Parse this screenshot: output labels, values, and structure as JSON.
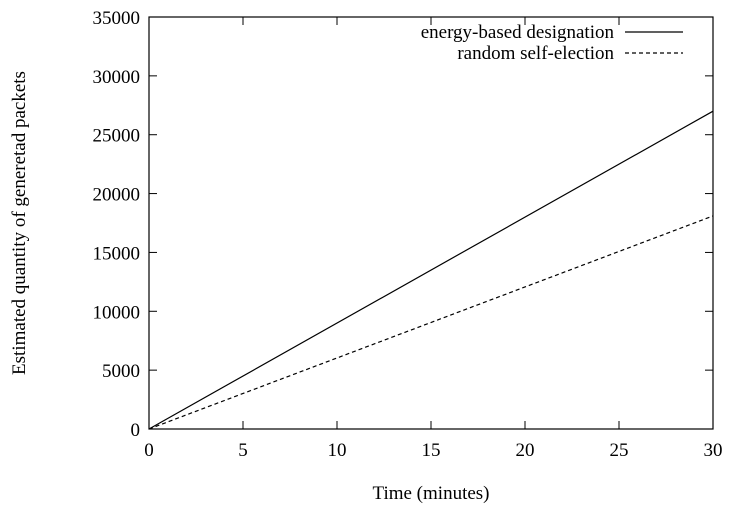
{
  "chart_data": {
    "type": "line",
    "title": "",
    "xlabel": "Time (minutes)",
    "ylabel": "Estimated quantity of generetad packets",
    "xlim": [
      0,
      30
    ],
    "ylim": [
      0,
      35000
    ],
    "x_ticks": [
      0,
      5,
      10,
      15,
      20,
      25,
      30
    ],
    "y_ticks": [
      0,
      5000,
      10000,
      15000,
      20000,
      25000,
      30000,
      35000
    ],
    "grid": false,
    "legend_position": "top-right",
    "series": [
      {
        "name": "energy-based designation",
        "style": "solid",
        "color": "#000000",
        "x": [
          0,
          30
        ],
        "y": [
          0,
          27000
        ]
      },
      {
        "name": "random self-election",
        "style": "dashed",
        "color": "#000000",
        "x": [
          0,
          30
        ],
        "y": [
          0,
          18100
        ]
      }
    ]
  }
}
